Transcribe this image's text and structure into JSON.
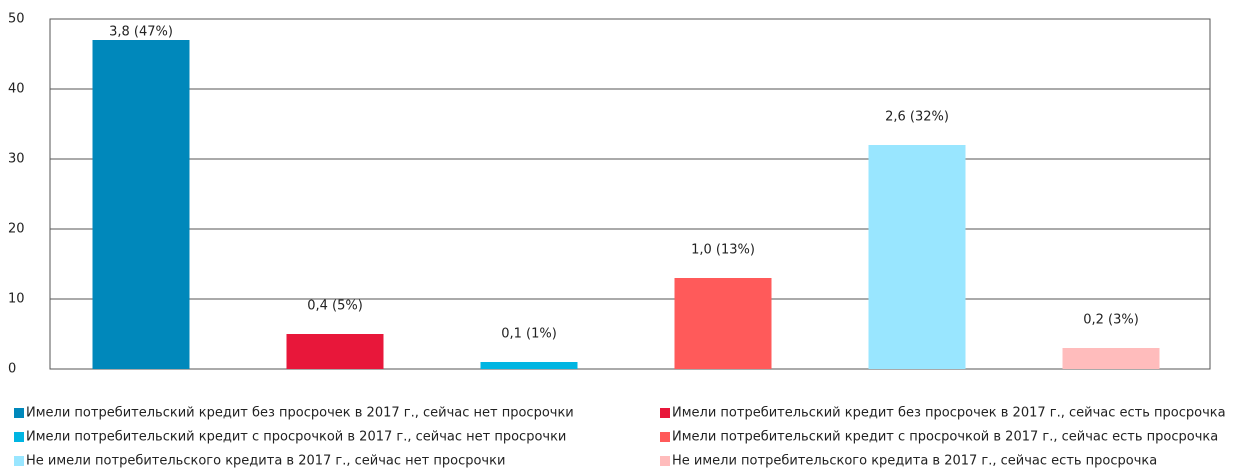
{
  "chart_data": {
    "type": "bar",
    "series": [
      {
        "name": "Имели потребительский кредит без просрочек в 2017 г., сейчас нет просрочки",
        "color": "#0088bb",
        "values": [
          47
        ],
        "value_labels": [
          "3,8 (47%)"
        ]
      },
      {
        "name": "Имели потребительский кредит без просрочек в 2017 г., сейчас есть просрочка",
        "color": "#e8173a",
        "values": [
          5
        ],
        "value_labels": [
          "0,4 (5%)"
        ]
      },
      {
        "name": "Имели потребительский кредит с просрочкой в 2017 г., сейчас нет просрочки",
        "color": "#00b5e2",
        "values": [
          1
        ],
        "value_labels": [
          "0,1 (1%)"
        ]
      },
      {
        "name": "Имели потребительский кредит с просрочкой в 2017 г., сейчас есть просрочка",
        "color": "#ff5a5a",
        "values": [
          13
        ],
        "value_labels": [
          "1,0 (13%)"
        ]
      },
      {
        "name": "Не имели потребительского кредита в 2017 г., сейчас нет просрочки",
        "color": "#99e6ff",
        "values": [
          32
        ],
        "value_labels": [
          "2,6 (32%)"
        ]
      },
      {
        "name": "Не имели потребительского кредита в 2017 г., сейчас есть просрочка",
        "color": "#ffbcbc",
        "values": [
          3
        ],
        "value_labels": [
          "0,2 (3%)"
        ]
      }
    ],
    "ylim": [
      0,
      50
    ],
    "yticks": [
      0,
      10,
      20,
      30,
      40,
      50
    ],
    "grid": true
  }
}
